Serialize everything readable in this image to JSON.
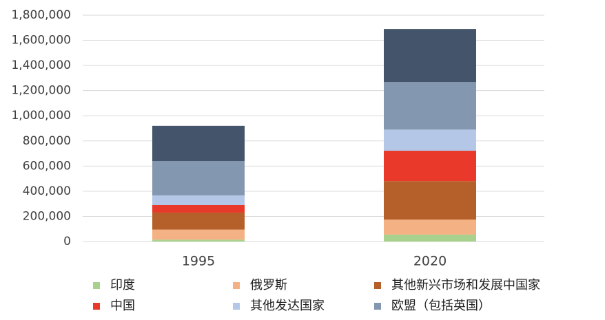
{
  "chart_data": {
    "type": "stacked_bar",
    "categories": [
      "1995",
      "2020"
    ],
    "series": [
      {
        "name": "印度",
        "color": "#a9d18e",
        "values": [
          15000,
          55000
        ]
      },
      {
        "name": "俄罗斯",
        "color": "#f4b183",
        "values": [
          80000,
          120000
        ]
      },
      {
        "name": "其他新兴市场和发展中国家",
        "color": "#b5602a",
        "values": [
          135000,
          305000
        ]
      },
      {
        "name": "中国",
        "color": "#e8392a",
        "values": [
          60000,
          242000
        ]
      },
      {
        "name": "其他发达国家",
        "color": "#b4c7e7",
        "values": [
          77000,
          168000
        ]
      },
      {
        "name": "欧盟（包括英国）",
        "color": "#8497b0",
        "values": [
          273000,
          378000
        ]
      },
      {
        "color": "#44546a",
        "values": [
          280000,
          422000
        ]
      }
    ],
    "ylim": [
      0,
      1800000
    ],
    "yticks": [
      0,
      {
        "value": 200000,
        "label": "200,000"
      },
      {
        "value": 400000,
        "label": "400,000"
      },
      {
        "value": 600000,
        "label": "600,000"
      },
      {
        "value": 800000,
        "label": "800,000"
      },
      {
        "value": 1000000,
        "label": "1,000,000"
      },
      {
        "value": 1200000,
        "label": "1,200,000"
      },
      {
        "value": 1400000,
        "label": "1,400,000"
      },
      {
        "value": 1600000,
        "label": "1,600,000"
      },
      {
        "value": 1800000,
        "label": "1,800,000"
      }
    ],
    "grid": true
  }
}
